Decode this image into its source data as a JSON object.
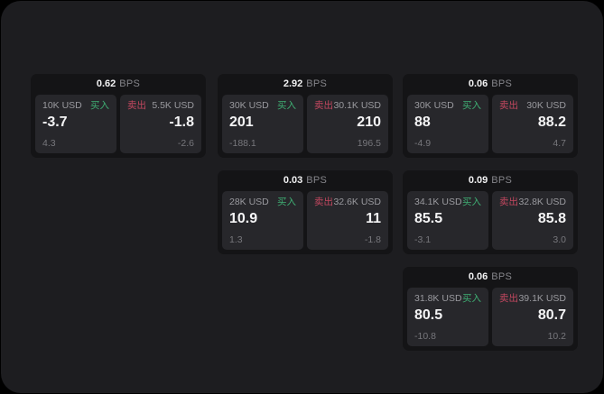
{
  "labels": {
    "bps_suffix": "BPS",
    "buy": "买入",
    "sell": "卖出"
  },
  "colors": {
    "outer_background": "#000000",
    "surface": "#1d1d20",
    "card_background": "#141416",
    "tile_background": "#27272b",
    "text_primary": "#f4f4f5",
    "text_secondary": "#9a9a9f",
    "text_muted": "#77777c",
    "buy_green": "#3fae73",
    "sell_red": "#c2475f"
  },
  "cards": [
    {
      "bps": "0.62",
      "buy": {
        "amount": "10K USD",
        "value": "-3.7",
        "delta": "4.3"
      },
      "sell": {
        "amount": "5.5K USD",
        "value": "-1.8",
        "delta": "-2.6"
      }
    },
    {
      "bps": "2.92",
      "buy": {
        "amount": "30K USD",
        "value": "201",
        "delta": "-188.1"
      },
      "sell": {
        "amount": "30.1K USD",
        "value": "210",
        "delta": "196.5"
      }
    },
    {
      "bps": "0.06",
      "buy": {
        "amount": "30K USD",
        "value": "88",
        "delta": "-4.9"
      },
      "sell": {
        "amount": "30K USD",
        "value": "88.2",
        "delta": "4.7"
      }
    },
    {
      "bps": "0.03",
      "buy": {
        "amount": "28K USD",
        "value": "10.9",
        "delta": "1.3"
      },
      "sell": {
        "amount": "32.6K USD",
        "value": "11",
        "delta": "-1.8"
      }
    },
    {
      "bps": "0.09",
      "buy": {
        "amount": "34.1K USD",
        "value": "85.5",
        "delta": "-3.1"
      },
      "sell": {
        "amount": "32.8K USD",
        "value": "85.8",
        "delta": "3.0"
      }
    },
    {
      "bps": "0.06",
      "buy": {
        "amount": "31.8K USD",
        "value": "80.5",
        "delta": "-10.8"
      },
      "sell": {
        "amount": "39.1K USD",
        "value": "80.7",
        "delta": "10.2"
      }
    }
  ]
}
